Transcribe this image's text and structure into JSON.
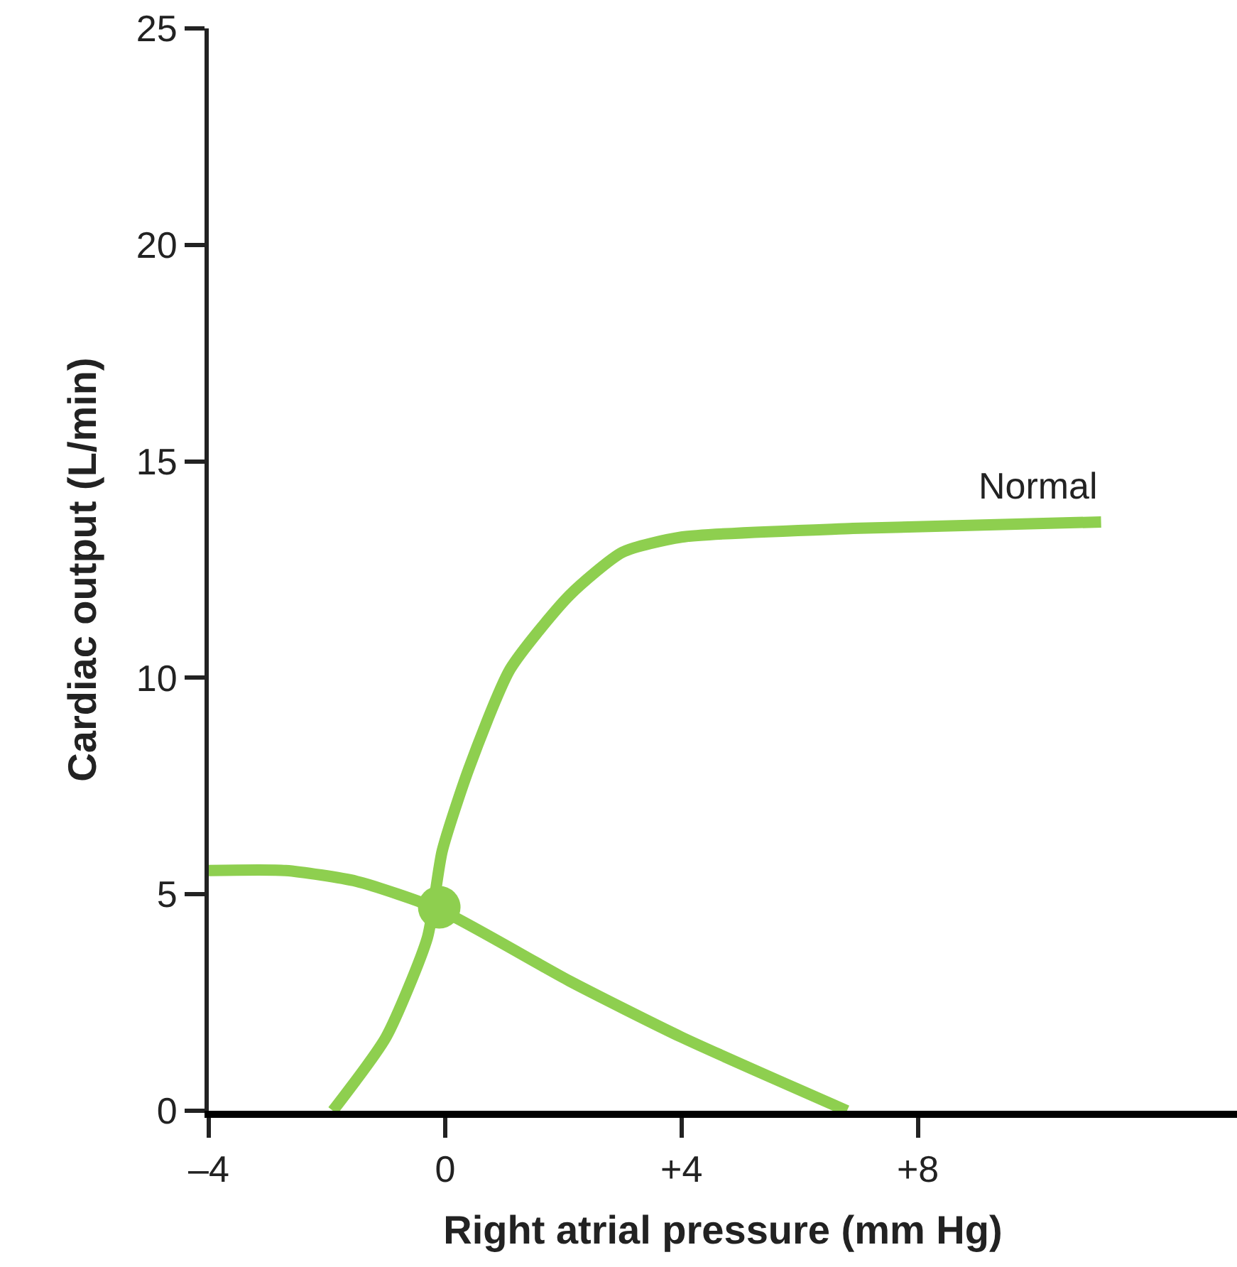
{
  "chart_data": {
    "type": "line",
    "xlabel": "Right atrial pressure (mm Hg)",
    "ylabel": "Cardiac output (L/min)",
    "xlim": [
      -4,
      13.4
    ],
    "ylim": [
      0,
      25
    ],
    "xticks": [
      {
        "value": -4,
        "label": "–4"
      },
      0,
      {
        "value": 4,
        "label": "+4"
      },
      {
        "value": 8,
        "label": "+8"
      }
    ],
    "yticks": [
      0,
      5,
      10,
      15,
      20,
      25
    ],
    "grid": false,
    "legend": false,
    "marker": "none",
    "line_style": "solid",
    "series": [
      {
        "name": "Normal",
        "color": "#8ecf4f",
        "x": [
          -1.9,
          -1.0,
          -0.3,
          -0.05,
          0.4,
          1.1,
          2.1,
          3.0,
          4.0,
          6.9,
          11.1
        ],
        "values": [
          0,
          1.7,
          4.0,
          6.0,
          7.9,
          10.2,
          11.9,
          12.9,
          13.25,
          13.45,
          13.6
        ]
      },
      {
        "color": "#8ecf4f",
        "x": [
          -4,
          -2.7,
          -1.5,
          -0.1,
          2.1,
          4.0,
          6.8
        ],
        "values": [
          5.55,
          5.55,
          5.3,
          4.65,
          3.0,
          1.7,
          0
        ]
      },
      {
        "type": "scatter",
        "color": "#8ecf4f",
        "marker": "circle",
        "x": [
          -0.1
        ],
        "values": [
          4.7
        ]
      }
    ]
  }
}
